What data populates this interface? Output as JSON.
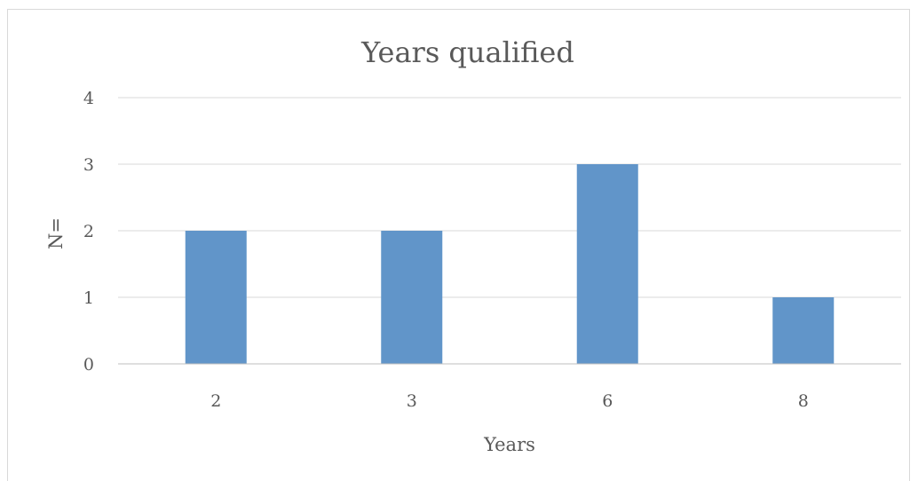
{
  "chart_data": {
    "type": "bar",
    "title": "Years qualified",
    "xlabel": "Years",
    "ylabel": "N=",
    "categories": [
      "2",
      "3",
      "6",
      "8"
    ],
    "values": [
      2,
      2,
      3,
      1
    ],
    "ylim": [
      0,
      4
    ],
    "yticks": [
      "0",
      "1",
      "2",
      "3",
      "4"
    ],
    "grid": true,
    "bar_color": "#6195c9"
  }
}
